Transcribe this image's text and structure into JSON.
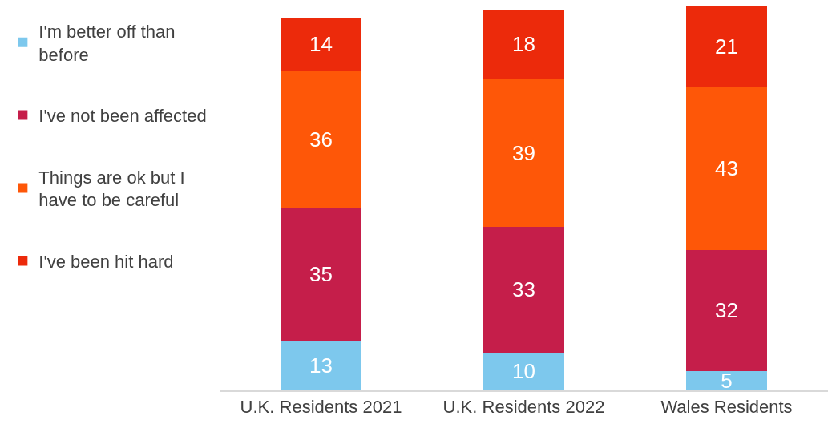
{
  "chart_data": {
    "type": "bar",
    "stacked": true,
    "data_labels": true,
    "legend": "left",
    "categories": [
      "U.K. Residents 2021",
      "U.K. Residents 2022",
      "Wales Residents"
    ],
    "series": [
      {
        "name": "I'm better off than before",
        "color": "#7dc8ed",
        "values": [
          13,
          10,
          5
        ]
      },
      {
        "name": "I've not been affected",
        "color": "#c51e4a",
        "values": [
          35,
          33,
          32
        ]
      },
      {
        "name": "Things are ok but I have to be careful",
        "color": "#fe5708",
        "values": [
          36,
          39,
          43
        ]
      },
      {
        "name": "I've been hit hard",
        "color": "#ec2a0b",
        "values": [
          14,
          18,
          21
        ]
      }
    ]
  }
}
